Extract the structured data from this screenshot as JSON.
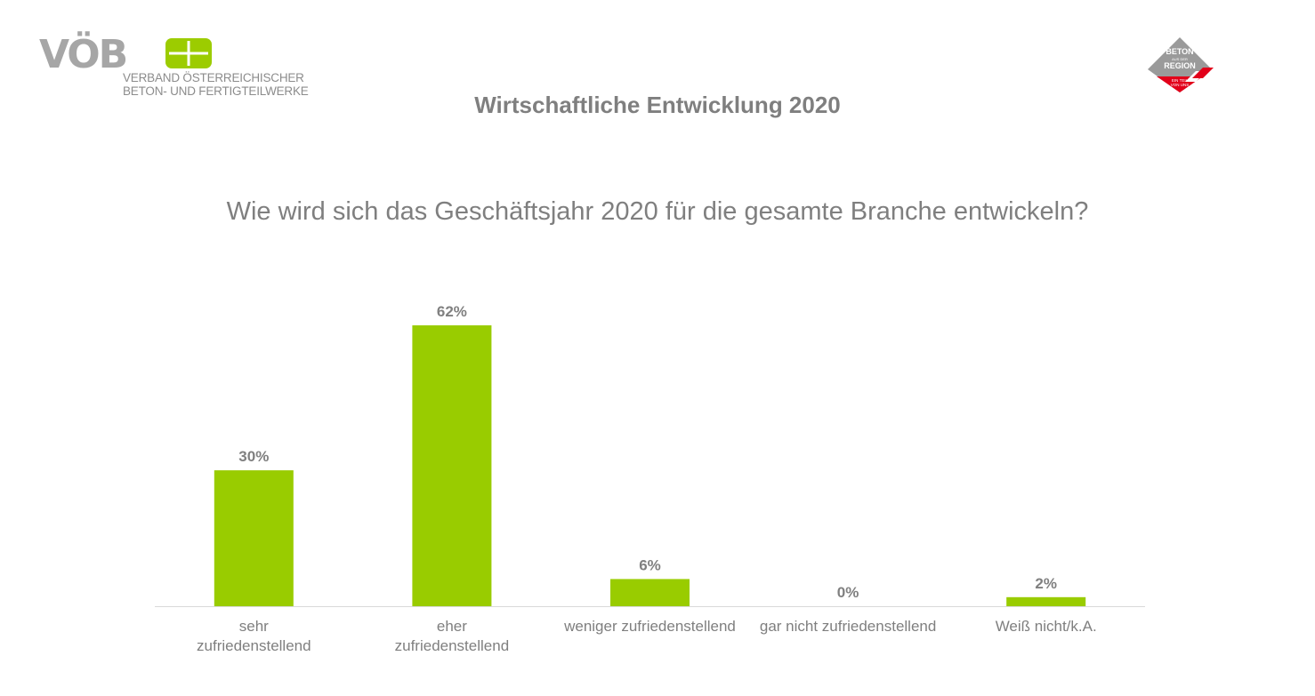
{
  "logo": {
    "wordmark": "VÖB",
    "line1": "VERBAND ÖSTERREICHISCHER",
    "line2": "BETON- UND FERTIGTEILWERKE",
    "accent_color": "#9ccc00"
  },
  "badge": {
    "line1": "BETON",
    "line2": "AUS DER",
    "line3": "REGION",
    "line4": "EIN TEIL",
    "line5": "VON UNS",
    "colors": {
      "gray": "#9a9a9a",
      "red": "#e2001a"
    }
  },
  "title": "Wirtschaftliche Entwicklung 2020",
  "chart_data": {
    "type": "bar",
    "title": "Wie wird sich das Geschäftsjahr 2020 für die gesamte Branche entwickeln?",
    "categories": [
      [
        "sehr",
        "zufriedenstellend"
      ],
      [
        "eher",
        "zufriedenstellend"
      ],
      [
        "weniger zufriedenstellend"
      ],
      [
        "gar nicht zufriedenstellend"
      ],
      [
        "Weiß nicht/k.A."
      ]
    ],
    "values": [
      30,
      62,
      6,
      0,
      2
    ],
    "value_labels": [
      "30%",
      "62%",
      "6%",
      "0%",
      "2%"
    ],
    "unit": "%",
    "ylim": [
      0,
      66
    ],
    "bar_color": "#99cc00",
    "grid": false,
    "legend": "none"
  }
}
